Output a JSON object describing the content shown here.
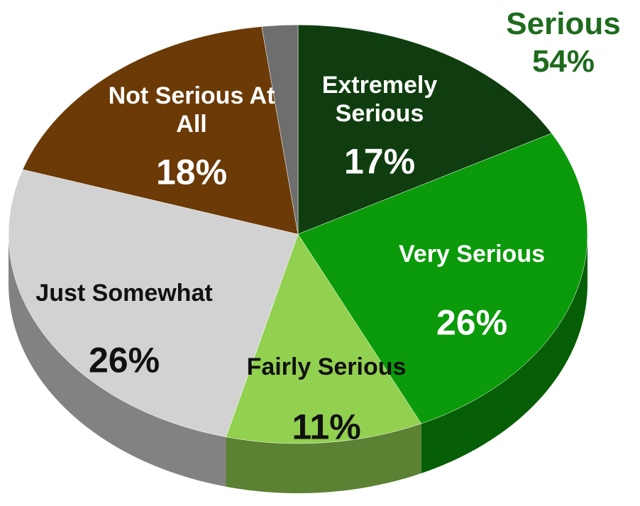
{
  "chart_data": {
    "type": "pie",
    "categories": [
      "Extremely Serious",
      "Very Serious",
      "Fairly Serious",
      "Just Somewhat",
      "Not Serious At All",
      null
    ],
    "values": [
      17,
      26,
      11,
      26,
      18,
      2
    ],
    "value_labels": [
      "17%",
      "26%",
      "11%",
      "26%",
      "18%",
      null
    ],
    "colors": [
      "#0f3d0f",
      "#0a9a0a",
      "#92d050",
      "#d2d2d2",
      "#6b3a06",
      "#6e6e6e"
    ],
    "annotation": {
      "text": "Serious",
      "value_label": "54%"
    }
  }
}
